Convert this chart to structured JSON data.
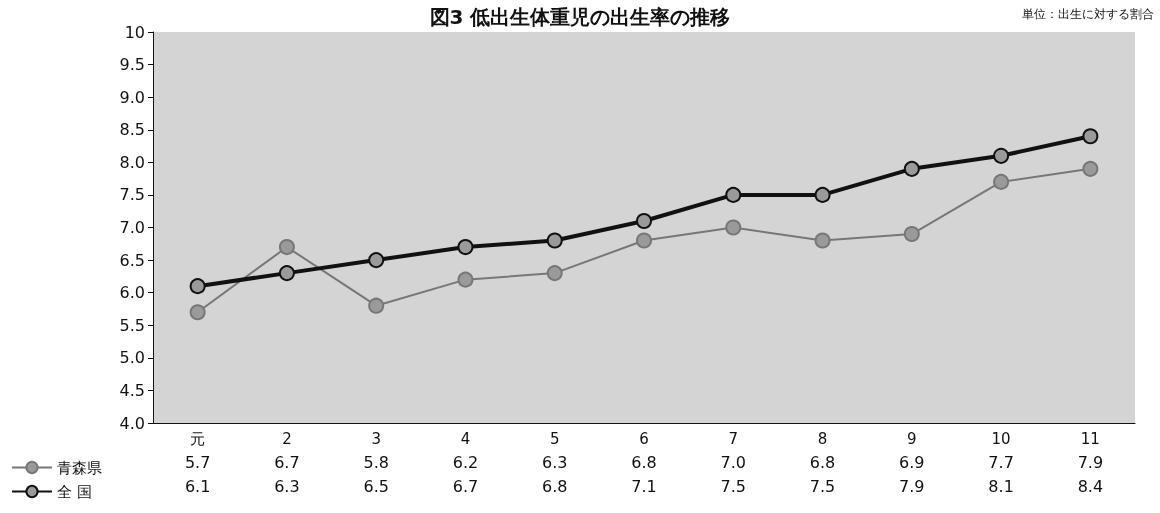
{
  "chart_data": {
    "type": "line",
    "title": "図3 低出生体重児の出生率の推移",
    "annotations": [
      "単位：出生に対する割合"
    ],
    "categories": [
      "元",
      "2",
      "3",
      "4",
      "5",
      "6",
      "7",
      "8",
      "9",
      "10",
      "11"
    ],
    "series": [
      {
        "name": "青森県",
        "color": "#777777",
        "values": [
          5.7,
          6.7,
          5.8,
          6.2,
          6.3,
          6.8,
          7.0,
          6.8,
          6.9,
          7.7,
          7.9
        ],
        "value_labels": [
          "5.7",
          "6.7",
          "5.8",
          "6.2",
          "6.3",
          "6.8",
          "7.0",
          "6.8",
          "6.9",
          "7.7",
          "7.9"
        ]
      },
      {
        "name": "全 国",
        "color": "#111111",
        "values": [
          6.1,
          6.3,
          6.5,
          6.7,
          6.8,
          7.1,
          7.5,
          7.5,
          7.9,
          8.1,
          8.4
        ],
        "value_labels": [
          "6.1",
          "6.3",
          "6.5",
          "6.7",
          "6.8",
          "7.1",
          "7.5",
          "7.5",
          "7.9",
          "8.1",
          "8.4"
        ]
      }
    ],
    "ylim": [
      4,
      10
    ],
    "yticks": [
      {
        "value": 4,
        "label": "4.0"
      },
      {
        "value": 4.5,
        "label": "4.5"
      },
      {
        "value": 5,
        "label": "5.0"
      },
      {
        "value": 5.5,
        "label": "5.5"
      },
      {
        "value": 6,
        "label": "6.0"
      },
      {
        "value": 6.5,
        "label": "6.5"
      },
      {
        "value": 7,
        "label": "7.0"
      },
      {
        "value": 7.5,
        "label": "7.5"
      },
      {
        "value": 8,
        "label": "8.0"
      },
      {
        "value": 8.5,
        "label": "8.5"
      },
      {
        "value": 9,
        "label": "9.0"
      },
      {
        "value": 9.5,
        "label": "9.5"
      },
      {
        "value": 10,
        "label": "10"
      }
    ],
    "grid": false,
    "legend": "bottom left",
    "marker": "circle",
    "line_style": "solid"
  }
}
